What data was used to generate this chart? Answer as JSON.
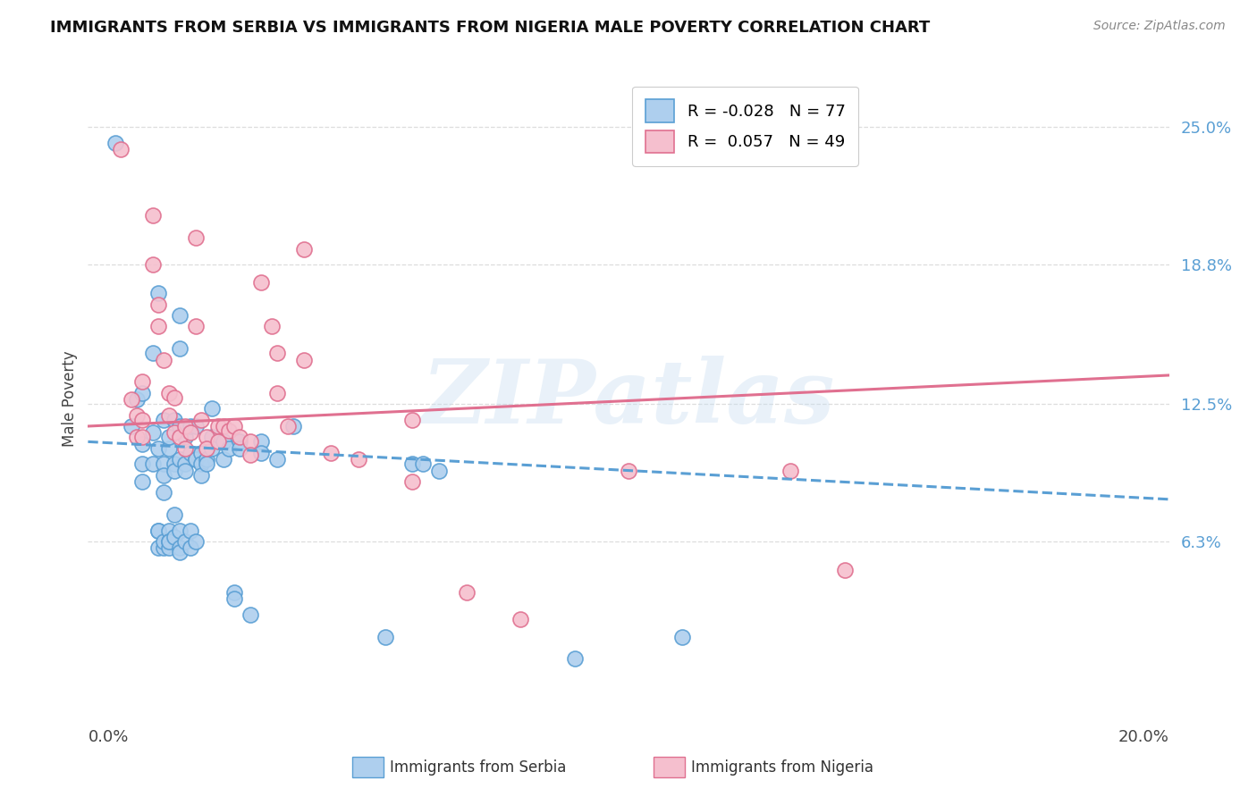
{
  "title": "IMMIGRANTS FROM SERBIA VS IMMIGRANTS FROM NIGERIA MALE POVERTY CORRELATION CHART",
  "source": "Source: ZipAtlas.com",
  "ylabel": "Male Poverty",
  "yaxis_labels": [
    "25.0%",
    "18.8%",
    "12.5%",
    "6.3%"
  ],
  "yaxis_values": [
    0.25,
    0.188,
    0.125,
    0.063
  ],
  "xlim": [
    0.0,
    0.2
  ],
  "ylim": [
    -0.02,
    0.275
  ],
  "serbia_R": -0.028,
  "serbia_N": 77,
  "nigeria_R": 0.057,
  "nigeria_N": 49,
  "serbia_color": "#aecfee",
  "nigeria_color": "#f5bfce",
  "serbia_edge_color": "#5a9fd4",
  "nigeria_edge_color": "#e07090",
  "serbia_trend_color": "#5a9fd4",
  "nigeria_trend_color": "#e07090",
  "serbia_scatter": [
    [
      0.005,
      0.243
    ],
    [
      0.008,
      0.115
    ],
    [
      0.009,
      0.127
    ],
    [
      0.01,
      0.107
    ],
    [
      0.01,
      0.098
    ],
    [
      0.01,
      0.09
    ],
    [
      0.01,
      0.13
    ],
    [
      0.012,
      0.112
    ],
    [
      0.012,
      0.148
    ],
    [
      0.012,
      0.098
    ],
    [
      0.013,
      0.175
    ],
    [
      0.013,
      0.105
    ],
    [
      0.013,
      0.068
    ],
    [
      0.013,
      0.068
    ],
    [
      0.013,
      0.06
    ],
    [
      0.014,
      0.06
    ],
    [
      0.014,
      0.063
    ],
    [
      0.014,
      0.118
    ],
    [
      0.014,
      0.098
    ],
    [
      0.014,
      0.093
    ],
    [
      0.014,
      0.085
    ],
    [
      0.015,
      0.105
    ],
    [
      0.015,
      0.11
    ],
    [
      0.015,
      0.068
    ],
    [
      0.015,
      0.063
    ],
    [
      0.015,
      0.06
    ],
    [
      0.015,
      0.063
    ],
    [
      0.016,
      0.118
    ],
    [
      0.016,
      0.098
    ],
    [
      0.016,
      0.095
    ],
    [
      0.016,
      0.075
    ],
    [
      0.016,
      0.065
    ],
    [
      0.017,
      0.165
    ],
    [
      0.017,
      0.15
    ],
    [
      0.017,
      0.115
    ],
    [
      0.017,
      0.1
    ],
    [
      0.017,
      0.068
    ],
    [
      0.017,
      0.06
    ],
    [
      0.017,
      0.058
    ],
    [
      0.018,
      0.11
    ],
    [
      0.018,
      0.098
    ],
    [
      0.018,
      0.095
    ],
    [
      0.018,
      0.063
    ],
    [
      0.019,
      0.115
    ],
    [
      0.019,
      0.103
    ],
    [
      0.019,
      0.068
    ],
    [
      0.019,
      0.06
    ],
    [
      0.02,
      0.115
    ],
    [
      0.02,
      0.1
    ],
    [
      0.02,
      0.1
    ],
    [
      0.02,
      0.063
    ],
    [
      0.021,
      0.103
    ],
    [
      0.021,
      0.098
    ],
    [
      0.021,
      0.093
    ],
    [
      0.022,
      0.1
    ],
    [
      0.022,
      0.098
    ],
    [
      0.023,
      0.123
    ],
    [
      0.023,
      0.11
    ],
    [
      0.023,
      0.105
    ],
    [
      0.025,
      0.108
    ],
    [
      0.025,
      0.1
    ],
    [
      0.026,
      0.105
    ],
    [
      0.027,
      0.04
    ],
    [
      0.027,
      0.037
    ],
    [
      0.028,
      0.108
    ],
    [
      0.028,
      0.105
    ],
    [
      0.03,
      0.03
    ],
    [
      0.032,
      0.108
    ],
    [
      0.032,
      0.103
    ],
    [
      0.035,
      0.1
    ],
    [
      0.038,
      0.115
    ],
    [
      0.055,
      0.02
    ],
    [
      0.06,
      0.098
    ],
    [
      0.062,
      0.098
    ],
    [
      0.065,
      0.095
    ],
    [
      0.09,
      0.01
    ],
    [
      0.11,
      0.02
    ]
  ],
  "nigeria_scatter": [
    [
      0.006,
      0.24
    ],
    [
      0.008,
      0.127
    ],
    [
      0.009,
      0.12
    ],
    [
      0.009,
      0.11
    ],
    [
      0.01,
      0.135
    ],
    [
      0.01,
      0.118
    ],
    [
      0.01,
      0.11
    ],
    [
      0.012,
      0.21
    ],
    [
      0.012,
      0.188
    ],
    [
      0.013,
      0.17
    ],
    [
      0.013,
      0.16
    ],
    [
      0.014,
      0.145
    ],
    [
      0.015,
      0.13
    ],
    [
      0.015,
      0.12
    ],
    [
      0.016,
      0.128
    ],
    [
      0.016,
      0.112
    ],
    [
      0.017,
      0.11
    ],
    [
      0.018,
      0.115
    ],
    [
      0.018,
      0.105
    ],
    [
      0.019,
      0.112
    ],
    [
      0.02,
      0.2
    ],
    [
      0.02,
      0.16
    ],
    [
      0.021,
      0.118
    ],
    [
      0.022,
      0.11
    ],
    [
      0.022,
      0.105
    ],
    [
      0.024,
      0.115
    ],
    [
      0.024,
      0.108
    ],
    [
      0.025,
      0.115
    ],
    [
      0.026,
      0.113
    ],
    [
      0.027,
      0.115
    ],
    [
      0.028,
      0.11
    ],
    [
      0.03,
      0.108
    ],
    [
      0.03,
      0.102
    ],
    [
      0.032,
      0.18
    ],
    [
      0.034,
      0.16
    ],
    [
      0.035,
      0.148
    ],
    [
      0.035,
      0.13
    ],
    [
      0.037,
      0.115
    ],
    [
      0.04,
      0.195
    ],
    [
      0.04,
      0.145
    ],
    [
      0.045,
      0.103
    ],
    [
      0.05,
      0.1
    ],
    [
      0.06,
      0.118
    ],
    [
      0.06,
      0.09
    ],
    [
      0.07,
      0.04
    ],
    [
      0.08,
      0.028
    ],
    [
      0.1,
      0.095
    ],
    [
      0.13,
      0.095
    ],
    [
      0.14,
      0.05
    ]
  ],
  "serbia_trend_x": [
    0.0,
    0.2
  ],
  "serbia_trend_y": [
    0.108,
    0.082
  ],
  "nigeria_trend_x": [
    0.0,
    0.2
  ],
  "nigeria_trend_y": [
    0.115,
    0.138
  ],
  "watermark": "ZIPatlas",
  "grid_color": "#dddddd",
  "background_color": "#ffffff",
  "legend_labels": [
    "R = -0.028   N = 77",
    "R =  0.057   N = 49"
  ],
  "bottom_legend_labels": [
    "Immigrants from Serbia",
    "Immigrants from Nigeria"
  ],
  "xtick_labels": [
    "0.0%",
    "20.0%"
  ],
  "title_fontsize": 13,
  "source_fontsize": 10,
  "axis_label_fontsize": 12,
  "tick_fontsize": 13,
  "legend_fontsize": 13
}
